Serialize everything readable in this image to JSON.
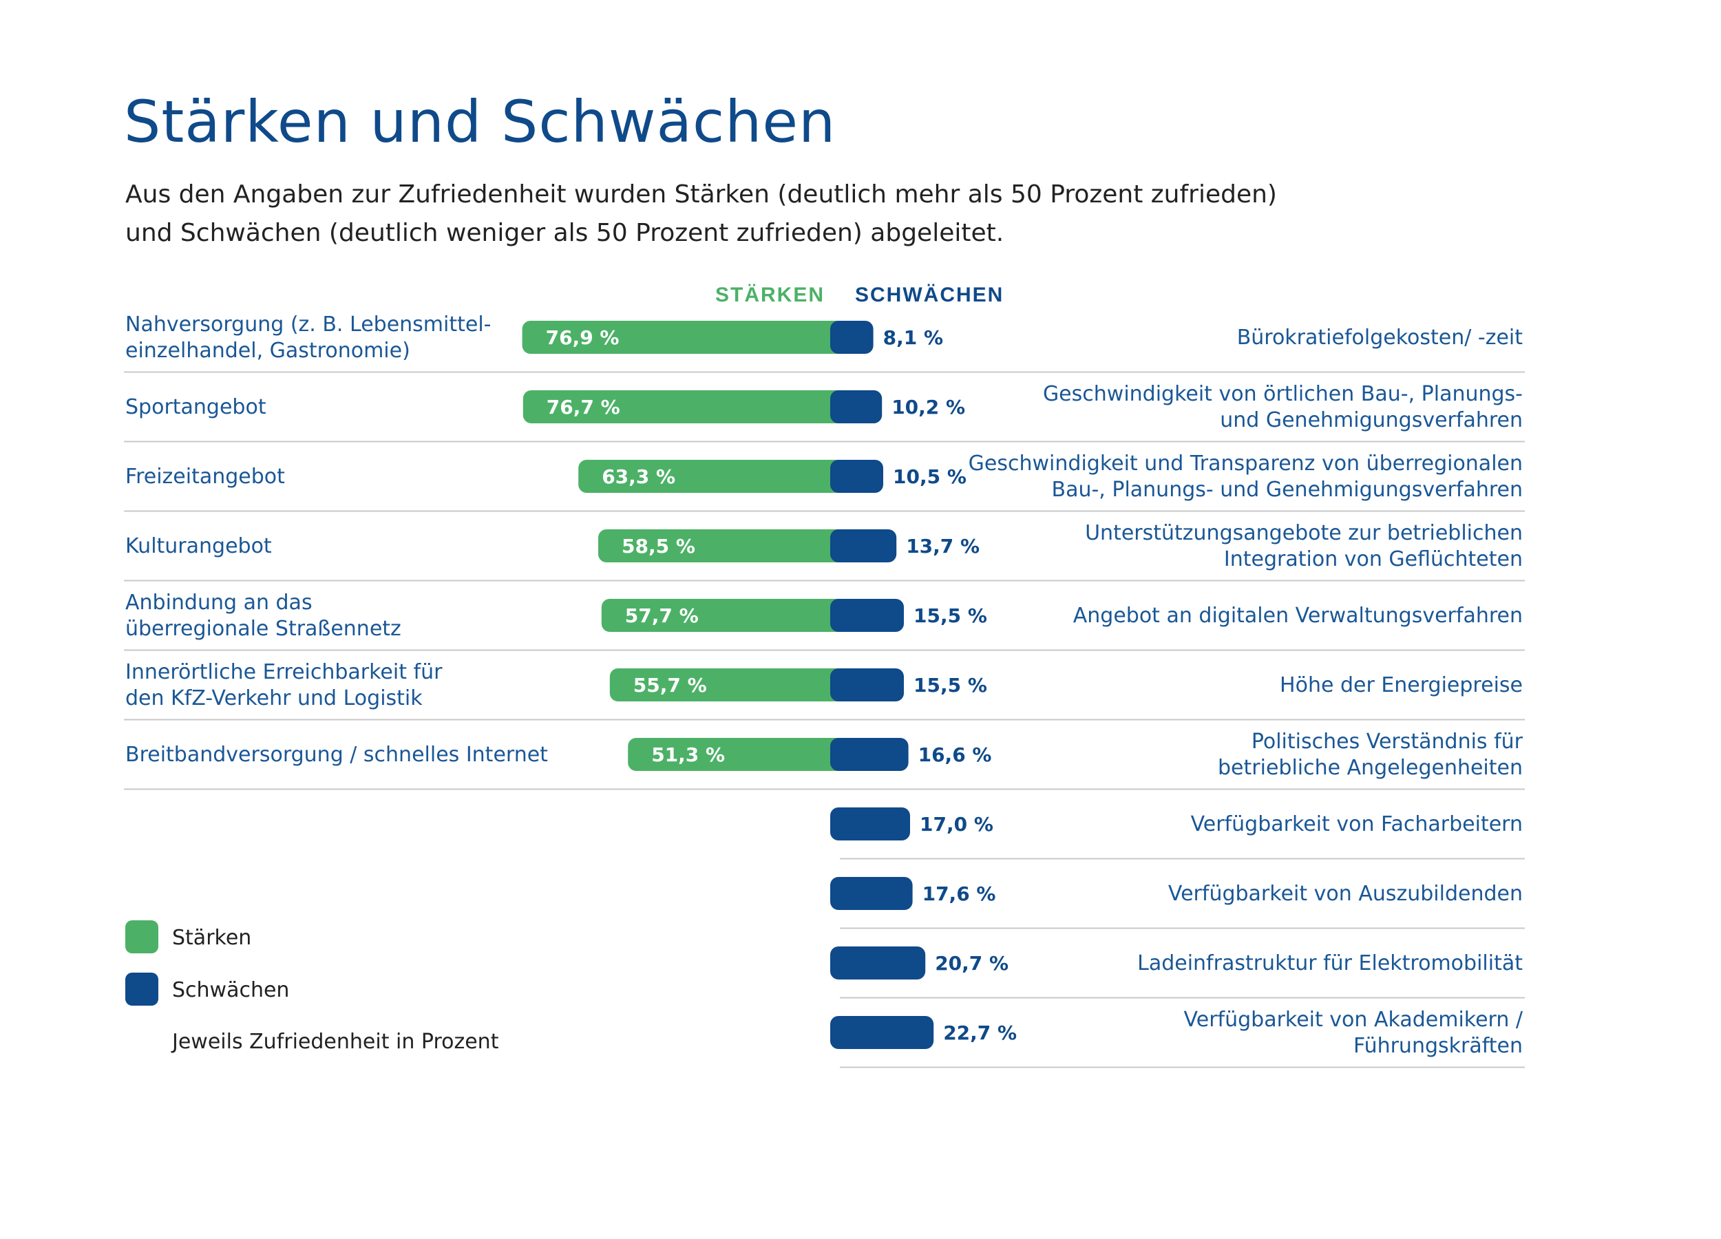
{
  "title": "Stärken und Schwächen",
  "subtitle": [
    "Aus den Angaben zur Zufriedenheit wurden Stärken (deutlich mehr als 50 Prozent zufrieden)",
    "und Schwächen (deutlich weniger als 50 Prozent zufrieden) abgeleitet."
  ],
  "colors": {
    "strength": "#4cb166",
    "weakness": "#0f4a8a",
    "divider": "#c8c8c8",
    "title": "#0f4a8a"
  },
  "chart_data": {
    "type": "bar",
    "orientation": "horizontal-diverging",
    "unit": "%",
    "headers": {
      "strengths": "STÄRKEN",
      "weaknesses": "SCHWÄCHEN"
    },
    "strengths": [
      {
        "label": [
          "Nahversorgung (z. B. Lebensmittel-",
          "einzelhandel, Gastronomie)"
        ],
        "value": 76.9,
        "display": "76,9 %"
      },
      {
        "label": [
          "Sportangebot"
        ],
        "value": 76.7,
        "display": "76,7 %"
      },
      {
        "label": [
          "Freizeitangebot"
        ],
        "value": 63.3,
        "display": "63,3 %"
      },
      {
        "label": [
          "Kulturangebot"
        ],
        "value": 58.5,
        "display": "58,5 %"
      },
      {
        "label": [
          "Anbindung an das",
          "überregionale Straßennetz"
        ],
        "value": 57.7,
        "display": "57,7 %"
      },
      {
        "label": [
          "Innerörtliche Erreichbarkeit für",
          "den KfZ-Verkehr und Logistik"
        ],
        "value": 55.7,
        "display": "55,7 %"
      },
      {
        "label": [
          "Breitbandversorgung / schnelles Internet"
        ],
        "value": 51.3,
        "display": "51,3 %"
      }
    ],
    "weaknesses": [
      {
        "label": [
          "Bürokratiefolgekosten/ -zeit"
        ],
        "value": 8.1,
        "display": "8,1 %"
      },
      {
        "label": [
          "Geschwindigkeit von örtlichen Bau-, Planungs-",
          "und Genehmigungsverfahren"
        ],
        "value": 10.2,
        "display": "10,2 %"
      },
      {
        "label": [
          "Geschwindigkeit und Transparenz von überregionalen",
          "Bau-, Planungs- und Genehmigungsverfahren"
        ],
        "value": 10.5,
        "display": "10,5 %"
      },
      {
        "label": [
          "Unterstützungsangebote zur betrieblichen",
          "Integration von Geflüchteten"
        ],
        "value": 13.7,
        "display": "13,7 %"
      },
      {
        "label": [
          "Angebot an digitalen Verwaltungsverfahren"
        ],
        "value": 15.5,
        "display": "15,5 %"
      },
      {
        "label": [
          "Höhe der Energiepreise"
        ],
        "value": 15.5,
        "display": "15,5 %"
      },
      {
        "label": [
          "Politisches Verständnis für",
          "betriebliche Angelegenheiten"
        ],
        "value": 16.6,
        "display": "16,6 %"
      },
      {
        "label": [
          "Verfügbarkeit von Facharbeitern"
        ],
        "value": 17.0,
        "display": "17,0 %"
      },
      {
        "label": [
          "Verfügbarkeit von Auszubildenden"
        ],
        "value": 17.6,
        "display": "17,6 %"
      },
      {
        "label": [
          "Ladeinfrastruktur für Elektromobilität"
        ],
        "value": 20.7,
        "display": "20,7 %"
      },
      {
        "label": [
          "Verfügbarkeit von Akademikern /",
          "Führungskräften"
        ],
        "value": 22.7,
        "display": "22,7 %"
      }
    ],
    "legend": {
      "strengths": "Stärken",
      "weaknesses": "Schwächen",
      "note": "Jeweils Zufriedenheit in Prozent"
    }
  }
}
